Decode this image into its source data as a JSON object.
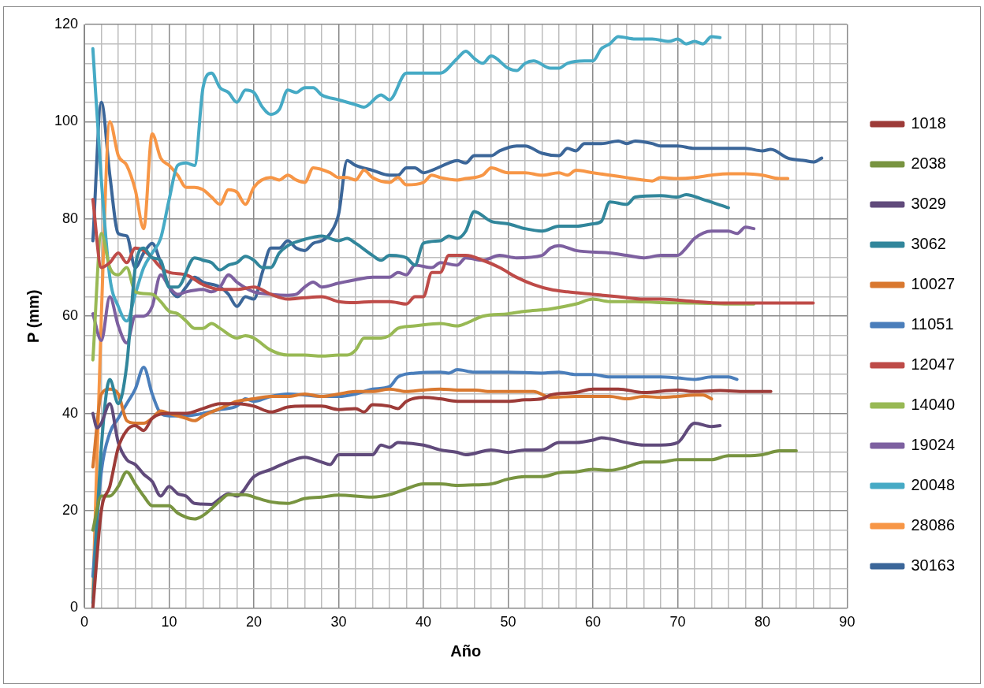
{
  "chart_data": {
    "type": "line",
    "xlabel": "Año",
    "ylabel": "P (mm)",
    "xlim": [
      0,
      90
    ],
    "ylim": [
      0,
      120
    ],
    "xticks": [
      0,
      {
        "value": 2,
        "label": null
      },
      {
        "value": 4,
        "label": null
      },
      {
        "value": 6,
        "label": null
      },
      {
        "value": 8,
        "label": null
      },
      10,
      {
        "value": 12,
        "label": null
      },
      {
        "value": 14,
        "label": null
      },
      {
        "value": 16,
        "label": null
      },
      {
        "value": 18,
        "label": null
      },
      20,
      {
        "value": 22,
        "label": null
      },
      {
        "value": 24,
        "label": null
      },
      {
        "value": 26,
        "label": null
      },
      {
        "value": 28,
        "label": null
      },
      30,
      {
        "value": 32,
        "label": null
      },
      {
        "value": 34,
        "label": null
      },
      {
        "value": 36,
        "label": null
      },
      {
        "value": 38,
        "label": null
      },
      40,
      {
        "value": 42,
        "label": null
      },
      {
        "value": 44,
        "label": null
      },
      {
        "value": 46,
        "label": null
      },
      {
        "value": 48,
        "label": null
      },
      50,
      {
        "value": 52,
        "label": null
      },
      {
        "value": 54,
        "label": null
      },
      {
        "value": 56,
        "label": null
      },
      {
        "value": 58,
        "label": null
      },
      60,
      {
        "value": 62,
        "label": null
      },
      {
        "value": 64,
        "label": null
      },
      {
        "value": 66,
        "label": null
      },
      {
        "value": 68,
        "label": null
      },
      70,
      {
        "value": 72,
        "label": null
      },
      {
        "value": 74,
        "label": null
      },
      {
        "value": 76,
        "label": null
      },
      {
        "value": 78,
        "label": null
      },
      80,
      {
        "value": 82,
        "label": null
      },
      {
        "value": 84,
        "label": null
      },
      {
        "value": 86,
        "label": null
      },
      {
        "value": 88,
        "label": null
      },
      90
    ],
    "yticks": [
      0,
      {
        "value": 4,
        "label": null
      },
      {
        "value": 8,
        "label": null
      },
      {
        "value": 12,
        "label": null
      },
      {
        "value": 16,
        "label": null
      },
      20,
      {
        "value": 24,
        "label": null
      },
      {
        "value": 28,
        "label": null
      },
      {
        "value": 32,
        "label": null
      },
      {
        "value": 36,
        "label": null
      },
      40,
      {
        "value": 44,
        "label": null
      },
      {
        "value": 48,
        "label": null
      },
      {
        "value": 52,
        "label": null
      },
      {
        "value": 56,
        "label": null
      },
      60,
      {
        "value": 64,
        "label": null
      },
      {
        "value": 68,
        "label": null
      },
      {
        "value": 72,
        "label": null
      },
      {
        "value": 76,
        "label": null
      },
      80,
      {
        "value": 84,
        "label": null
      },
      {
        "value": 88,
        "label": null
      },
      {
        "value": 92,
        "label": null
      },
      {
        "value": 96,
        "label": null
      },
      100,
      {
        "value": 104,
        "label": null
      },
      {
        "value": 108,
        "label": null
      },
      {
        "value": 112,
        "label": null
      },
      {
        "value": 116,
        "label": null
      },
      120
    ],
    "grid": true,
    "legend": "right",
    "marker": "none",
    "line_style": "solid",
    "series": [
      {
        "name": "1018",
        "color": "#9d3b38",
        "x": [
          1,
          2,
          3,
          4,
          5,
          6,
          7,
          8,
          10,
          12,
          14,
          16,
          18,
          20,
          22,
          24,
          26,
          28,
          30,
          32,
          33,
          34,
          36,
          37,
          38,
          40,
          42,
          44,
          46,
          48,
          50,
          52,
          54,
          55,
          58,
          60,
          63,
          66,
          70,
          72,
          75,
          78,
          81
        ],
        "values": [
          0,
          20,
          25,
          33,
          36.5,
          37.5,
          36.5,
          39,
          40,
          40,
          41,
          42,
          42,
          41.5,
          40.3,
          41.3,
          41.5,
          41.5,
          40.8,
          41,
          40.3,
          41.8,
          41.5,
          41,
          42.5,
          43.3,
          43,
          42.5,
          42.5,
          42.5,
          42.5,
          42.8,
          43,
          43.8,
          44.3,
          45,
          45,
          44.3,
          44.8,
          44.5,
          44.7,
          44.5,
          44.5
        ]
      },
      {
        "name": "2038",
        "color": "#789440",
        "x": [
          1,
          2,
          3,
          4,
          5,
          6,
          7,
          8,
          10,
          11,
          13,
          14,
          16,
          17,
          19,
          20,
          22,
          24,
          26,
          28,
          30,
          34,
          36,
          38,
          40,
          42,
          44,
          46,
          48,
          50,
          52,
          54,
          56,
          58,
          60,
          62,
          64,
          66,
          68,
          70,
          72,
          74,
          76,
          78,
          80,
          82,
          84
        ],
        "values": [
          16,
          23,
          23,
          25,
          28,
          25.5,
          23,
          21,
          21,
          19.5,
          18.3,
          19,
          22,
          23.3,
          23.3,
          22.8,
          21.8,
          21.5,
          22.5,
          22.8,
          23.2,
          22.8,
          23.3,
          24.5,
          25.5,
          25.5,
          25.2,
          25.3,
          25.5,
          26.5,
          27,
          27,
          27.8,
          28,
          28.5,
          28.3,
          29,
          30,
          30,
          30.5,
          30.5,
          30.5,
          31.3,
          31.3,
          31.5,
          32.3,
          32.3
        ]
      },
      {
        "name": "3029",
        "color": "#604a7b",
        "x": [
          1,
          1.5,
          2,
          3,
          4,
          5,
          6,
          7,
          8,
          9,
          10,
          11,
          12,
          13,
          15,
          16,
          17,
          18,
          20,
          22,
          24,
          26,
          28,
          29,
          30,
          32,
          34,
          35,
          36,
          37,
          40,
          42,
          44,
          45,
          48,
          50,
          52,
          54,
          56,
          58,
          60,
          61,
          64,
          66,
          68,
          70,
          72,
          74,
          75
        ],
        "values": [
          40,
          37,
          38,
          42,
          34,
          30.5,
          29.5,
          27.5,
          26,
          23,
          25,
          23.5,
          23,
          21.5,
          21.3,
          22.5,
          23.5,
          23,
          27,
          28.5,
          30,
          31,
          30,
          29.5,
          31.5,
          31.5,
          31.5,
          33.5,
          33,
          34,
          33.5,
          32.5,
          32,
          31.5,
          32.5,
          32,
          32.5,
          32.5,
          34,
          34,
          34.5,
          35,
          34,
          33.5,
          33.5,
          34,
          38,
          37.3,
          37.5
        ]
      },
      {
        "name": "3062",
        "color": "#31869b",
        "x": [
          1,
          2,
          3,
          4,
          5,
          6,
          7,
          8,
          9,
          10,
          11,
          13,
          14,
          15,
          16,
          17,
          18,
          19,
          20,
          21,
          22,
          23,
          24,
          26,
          28,
          30,
          31,
          32,
          34,
          35,
          36,
          38,
          39,
          40,
          42,
          43,
          44,
          45,
          46,
          48,
          50,
          52,
          54,
          56,
          58,
          60,
          61,
          62,
          64,
          65,
          68,
          70,
          71,
          73,
          76
        ],
        "values": [
          1,
          33,
          47,
          42,
          50,
          70,
          74,
          72,
          71.5,
          66,
          66,
          72,
          71.5,
          71,
          69.5,
          70.5,
          71,
          72.3,
          71.5,
          70,
          70,
          73,
          74.5,
          75.8,
          76.5,
          75.5,
          76,
          75,
          72.5,
          71.5,
          72.5,
          72,
          70.5,
          75,
          75.5,
          76.5,
          76,
          77.5,
          81.5,
          79.5,
          79,
          78,
          77.5,
          78.5,
          78.5,
          79,
          79.5,
          83.5,
          83,
          84.5,
          84.8,
          84.5,
          85,
          84,
          82.3
        ]
      },
      {
        "name": "10027",
        "color": "#d9782f",
        "x": [
          1,
          2,
          3,
          4,
          5,
          6,
          7,
          8,
          9,
          10,
          12,
          13,
          14,
          16,
          18,
          20,
          22,
          24,
          26,
          28,
          30,
          32,
          34,
          36,
          38,
          40,
          42,
          44,
          46,
          48,
          50,
          53,
          55,
          58,
          60,
          62,
          64,
          66,
          68,
          70,
          72,
          73,
          74
        ],
        "values": [
          29,
          44,
          45,
          44,
          38.5,
          38,
          38,
          39,
          40.5,
          40,
          39,
          38.5,
          39.5,
          41,
          42.5,
          43,
          43.5,
          43.5,
          44,
          43.5,
          44,
          44.5,
          44.5,
          45,
          44.5,
          44.8,
          45,
          44.8,
          44.8,
          44.5,
          44.5,
          44.5,
          43.3,
          43.5,
          43.5,
          43.5,
          43,
          43.5,
          43.3,
          43.5,
          43.8,
          43.8,
          43
        ]
      },
      {
        "name": "11051",
        "color": "#4a7ebb",
        "x": [
          1,
          2,
          3,
          4,
          5,
          6,
          7,
          8,
          9,
          10,
          12,
          14,
          16,
          18,
          19,
          20,
          22,
          24,
          26,
          28,
          30,
          32,
          34,
          36,
          37,
          39,
          42,
          43,
          44,
          46,
          50,
          54,
          56,
          58,
          60,
          62,
          66,
          68,
          70,
          72,
          74,
          76,
          77
        ],
        "values": [
          6.5,
          28,
          36,
          39,
          42,
          45,
          49.5,
          44,
          40,
          39.5,
          39.5,
          40,
          40.8,
          41.5,
          43,
          42.5,
          43.5,
          44,
          43.8,
          43.5,
          43.5,
          44,
          45,
          45.5,
          47.5,
          48.3,
          48.5,
          48.3,
          49,
          48.5,
          48.5,
          48.3,
          48.5,
          48,
          48,
          47.5,
          47.5,
          47.5,
          47.3,
          47,
          47.5,
          47.5,
          47
        ]
      },
      {
        "name": "12047",
        "color": "#be4b48",
        "x": [
          1,
          2,
          3,
          4,
          5,
          6,
          7,
          8,
          9,
          10,
          12,
          14,
          16,
          18,
          20,
          22,
          24,
          26,
          28,
          30,
          32,
          34,
          36,
          38,
          39,
          40,
          41,
          42,
          43,
          45,
          47,
          49,
          51,
          53,
          55,
          57,
          60,
          63,
          66,
          68,
          72,
          75,
          78,
          82,
          86
        ],
        "values": [
          84,
          70,
          71,
          73,
          71,
          74,
          73.5,
          72,
          70,
          69,
          68.5,
          66.5,
          65.5,
          65.5,
          66,
          64.5,
          63.5,
          63.8,
          64,
          63,
          62.8,
          63,
          63,
          62.5,
          64,
          64,
          69,
          69,
          72.5,
          72.5,
          71.5,
          70,
          68,
          66.5,
          65.5,
          65,
          64.5,
          64,
          63.5,
          63.5,
          63,
          62.7,
          62.7,
          62.7,
          62.7
        ]
      },
      {
        "name": "14040",
        "color": "#98b954",
        "x": [
          1,
          2,
          3,
          4,
          5,
          6,
          8,
          9,
          10,
          11,
          12,
          13,
          14,
          15,
          16,
          18,
          19,
          20,
          22,
          24,
          26,
          28,
          30,
          31,
          32,
          33,
          35,
          36,
          37,
          39,
          42,
          44,
          45,
          47,
          50,
          52,
          55,
          58,
          60,
          62,
          65,
          68,
          72,
          76,
          79
        ],
        "values": [
          51,
          77,
          70,
          68.5,
          70,
          65,
          64.5,
          63,
          61,
          60.5,
          59,
          57.5,
          57.5,
          58.5,
          57.5,
          55.5,
          56,
          55.5,
          53,
          52,
          52,
          51.8,
          52,
          52,
          53,
          55.5,
          55.5,
          56,
          57.5,
          58,
          58.5,
          58,
          58.5,
          60,
          60.5,
          61,
          61.5,
          62.5,
          63.5,
          63,
          63,
          62.8,
          62.7,
          62.5,
          62.5
        ]
      },
      {
        "name": "19024",
        "color": "#7d60a0",
        "x": [
          1,
          2,
          3,
          4,
          5,
          6,
          7,
          8,
          9,
          10,
          11,
          12,
          14,
          15,
          16,
          17,
          18,
          20,
          22,
          24,
          25,
          26,
          27,
          28,
          30,
          32,
          34,
          36,
          37,
          38,
          39,
          41,
          42,
          44,
          45,
          47,
          49,
          51,
          54,
          55,
          56,
          58,
          62,
          64,
          66,
          68,
          70,
          71,
          72,
          74,
          76,
          77,
          78,
          79
        ],
        "values": [
          60.5,
          55,
          64,
          58,
          54.5,
          60,
          60,
          62,
          68.5,
          66,
          64.5,
          65,
          65.5,
          65,
          66,
          68.5,
          67,
          65,
          64.5,
          64.3,
          64.5,
          66,
          67,
          66,
          66.8,
          67.5,
          68,
          68,
          69,
          68.5,
          70.5,
          70,
          71,
          70.5,
          72,
          71.5,
          72.5,
          72,
          72.5,
          74,
          74.5,
          73.5,
          73,
          72.5,
          72,
          72.5,
          72.5,
          74,
          76,
          77.5,
          77.5,
          77,
          78.3,
          78
        ]
      },
      {
        "name": "20048",
        "color": "#46aac5",
        "x": [
          1,
          2,
          3,
          4,
          5,
          6,
          7,
          8,
          9,
          10,
          11,
          12,
          13,
          14,
          15,
          16,
          17,
          18,
          19,
          20,
          21,
          22,
          23,
          24,
          25,
          26,
          27,
          28,
          30,
          31,
          32,
          33,
          35,
          36,
          38,
          40,
          42,
          44,
          45,
          46,
          47,
          48,
          50,
          51,
          52,
          53,
          55,
          56,
          57,
          59,
          60,
          61,
          62,
          63,
          65,
          67,
          69,
          70,
          71,
          72,
          73,
          74,
          75
        ],
        "values": [
          115,
          88,
          68,
          62,
          59,
          64.5,
          70,
          73,
          76,
          84,
          91,
          91.5,
          91,
          107,
          110,
          107,
          106,
          104,
          106.5,
          106,
          103,
          101.5,
          102.5,
          106.5,
          106,
          107,
          107,
          105.5,
          104.5,
          104,
          103.5,
          103,
          105.5,
          104.5,
          110,
          110,
          110,
          113,
          114.5,
          113,
          112,
          113.5,
          111,
          110.5,
          112,
          112.5,
          111,
          111,
          112,
          112.5,
          112.5,
          115,
          116,
          117.5,
          117,
          117,
          116.5,
          117,
          116,
          116.5,
          116,
          117.5,
          117.3
        ]
      },
      {
        "name": "28086",
        "color": "#f79646",
        "x": [
          1,
          2,
          3,
          4,
          5,
          6,
          7,
          8,
          9,
          10,
          11,
          12,
          13,
          14,
          15,
          16,
          17,
          18,
          19,
          20,
          22,
          23,
          24,
          25,
          26,
          27,
          29,
          30,
          31,
          32,
          33,
          34,
          36,
          37,
          38,
          40,
          41,
          42,
          44,
          45,
          47,
          48,
          50,
          52,
          54,
          56,
          57,
          58,
          60,
          62,
          64,
          66,
          67,
          68,
          70,
          72,
          74,
          76,
          78,
          80,
          82,
          83
        ],
        "values": [
          2,
          60,
          100,
          93,
          91,
          86,
          78,
          97.5,
          92.5,
          91,
          89,
          86.5,
          86.5,
          86,
          84.5,
          83,
          86,
          85.5,
          83,
          86.5,
          88.5,
          88,
          89,
          88,
          87.5,
          90.5,
          89.5,
          88.5,
          88.5,
          88,
          90,
          88.5,
          87.5,
          88.5,
          87,
          87.5,
          89,
          88.5,
          88,
          88.3,
          89,
          90.5,
          89.5,
          89.5,
          89,
          89.5,
          89,
          90,
          89.5,
          89,
          88.5,
          88,
          87.8,
          88.5,
          88.3,
          88.5,
          89,
          89.3,
          89.3,
          89,
          88.3,
          88.3
        ]
      },
      {
        "name": "30163",
        "color": "#3b6699",
        "x": [
          1,
          2,
          3,
          4,
          5,
          6,
          7,
          8,
          9,
          10,
          11,
          12,
          13,
          14,
          16,
          17,
          18,
          19,
          20,
          21,
          22,
          23,
          24,
          25,
          26,
          27,
          28,
          29,
          30,
          31,
          32,
          34,
          36,
          37,
          38,
          39,
          40,
          41,
          43,
          44,
          45,
          46,
          48,
          49,
          51,
          52,
          54,
          56,
          57,
          58,
          59,
          61,
          63,
          64,
          65,
          67,
          68,
          70,
          72,
          75,
          78,
          80,
          81,
          83,
          85,
          86,
          87
        ],
        "values": [
          75.5,
          104,
          89,
          77,
          76.5,
          70,
          73,
          75,
          71,
          66,
          64,
          66,
          68,
          67,
          66,
          64.5,
          62,
          64,
          63.5,
          69,
          74,
          74,
          75.5,
          74,
          73.5,
          75,
          75.5,
          77,
          81,
          92,
          91,
          90,
          89,
          89,
          90.5,
          90.5,
          89.5,
          90,
          91.5,
          92,
          91.5,
          93,
          93,
          94,
          95,
          95,
          93.5,
          93,
          94.5,
          94,
          95.5,
          95.5,
          96,
          95.5,
          96,
          95.5,
          95,
          95,
          94.5,
          94.5,
          94.5,
          94,
          94.3,
          92.5,
          92,
          91.7,
          92.5
        ]
      }
    ]
  }
}
